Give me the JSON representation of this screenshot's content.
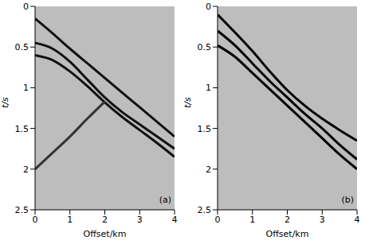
{
  "chart_data": [
    {
      "type": "line",
      "title": "(a)",
      "x_label": "Offset/km",
      "y_label": "t/s",
      "x": [
        0,
        0.5,
        1,
        1.5,
        2,
        2.5,
        3,
        3.5,
        4
      ],
      "xlim": [
        0,
        4
      ],
      "xticks": [
        0,
        1,
        2,
        3,
        4
      ],
      "ylim": [
        0,
        2.5
      ],
      "yticks": [
        0,
        0.5,
        1,
        1.5,
        2,
        2.5
      ],
      "series": [
        {
          "color": "#111111",
          "values": [
            0.15,
            0.33,
            0.52,
            0.7,
            0.88,
            1.06,
            1.24,
            1.42,
            1.6
          ]
        },
        {
          "color": "#111111",
          "values": [
            0.45,
            0.52,
            0.68,
            0.9,
            1.12,
            1.3,
            1.45,
            1.6,
            1.75
          ]
        },
        {
          "color": "#111111",
          "values": [
            0.6,
            0.66,
            0.8,
            0.98,
            1.18,
            1.36,
            1.52,
            1.68,
            1.85
          ]
        },
        {
          "color": "#333333",
          "values": [
            2.0,
            1.8,
            1.6,
            1.38,
            1.17,
            null,
            null,
            null,
            null
          ]
        }
      ]
    },
    {
      "type": "line",
      "title": "(b)",
      "x_label": "Offset/km",
      "y_label": "t/s",
      "x": [
        0,
        0.5,
        1,
        1.5,
        2,
        2.5,
        3,
        3.5,
        4
      ],
      "xlim": [
        0,
        4
      ],
      "xticks": [
        0,
        1,
        2,
        3,
        4
      ],
      "ylim": [
        0,
        2.5
      ],
      "yticks": [
        0,
        0.5,
        1,
        1.5,
        2,
        2.5
      ],
      "series": [
        {
          "color": "#000000",
          "values": [
            0.1,
            0.32,
            0.55,
            0.8,
            1.03,
            1.22,
            1.38,
            1.52,
            1.65
          ]
        },
        {
          "color": "#000000",
          "values": [
            0.3,
            0.48,
            0.7,
            0.92,
            1.12,
            1.32,
            1.5,
            1.7,
            1.88
          ]
        },
        {
          "color": "#000000",
          "values": [
            0.48,
            0.62,
            0.82,
            1.02,
            1.22,
            1.42,
            1.62,
            1.82,
            2.0
          ]
        }
      ]
    }
  ]
}
